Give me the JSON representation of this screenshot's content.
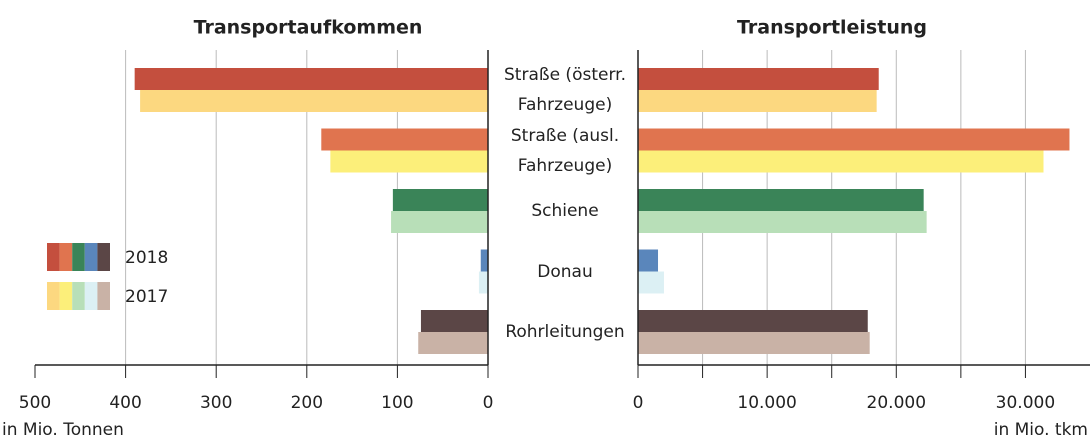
{
  "chart_data": [
    {
      "type": "hbar",
      "title": "Transportaufkommen",
      "xlabel": "in Mio. Tonnen",
      "reversed": true,
      "categories": [
        "Straße (österr. Fahrzeuge)",
        "Straße (ausl. Fahrzeuge)",
        "Schiene",
        "Donau",
        "Rohrleitungen"
      ],
      "series": [
        {
          "name": "2018",
          "color": [
            "#c44f3e",
            "#e0744f",
            "#3a8458",
            "#5a86bb",
            "#5b4646"
          ],
          "values": [
            390,
            184,
            105,
            8,
            74
          ]
        },
        {
          "name": "2017",
          "color": [
            "#fcd880",
            "#fcef7a",
            "#b8dfb8",
            "#dcf0f4",
            "#c9b2a6"
          ],
          "values": [
            384,
            174,
            107,
            10,
            77
          ]
        }
      ],
      "xlim": [
        0,
        500
      ],
      "xticks": [
        0,
        100,
        200,
        300,
        400,
        500
      ],
      "grid": true,
      "legend": "left"
    },
    {
      "type": "hbar",
      "title": "Transportleistung",
      "xlabel": "in Mio. tkm",
      "reversed": false,
      "series": [
        {
          "name": "2018",
          "color": [
            "#c44f3e",
            "#e0744f",
            "#3a8458",
            "#5a86bb",
            "#5b4646"
          ],
          "values": [
            18640,
            33410,
            22120,
            1550,
            17790
          ]
        },
        {
          "name": "2017",
          "color": [
            "#fcd880",
            "#fcef7a",
            "#b8dfb8",
            "#dcf0f4",
            "#c9b2a6"
          ],
          "values": [
            18480,
            31400,
            22350,
            2010,
            17940
          ]
        }
      ],
      "xlim": [
        0,
        35000
      ],
      "xticks": [
        0,
        {
          "value": 10000,
          "label": "10.000"
        },
        {
          "value": 20000,
          "label": "20.000"
        },
        {
          "value": 30000,
          "label": "30.000"
        }
      ],
      "minor_xticks": [
        5000,
        15000,
        25000
      ],
      "grid": true
    }
  ]
}
